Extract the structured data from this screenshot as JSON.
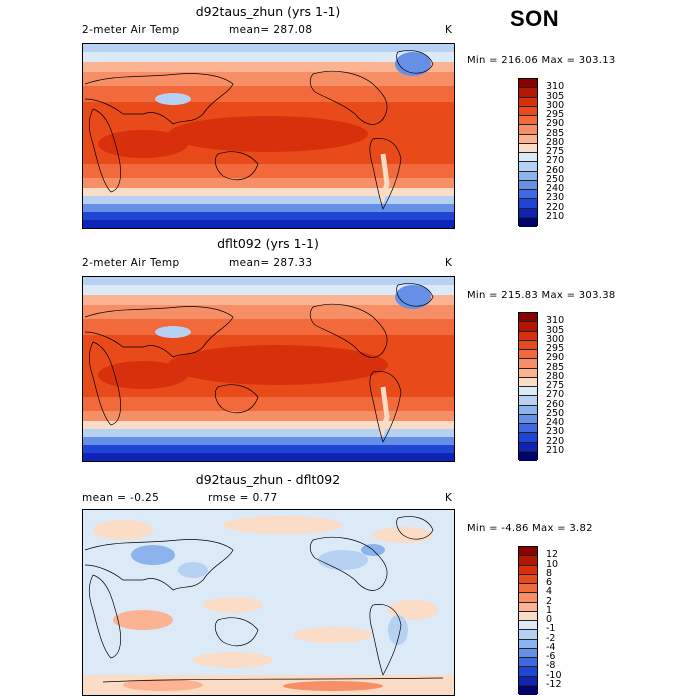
{
  "season": "SON",
  "panels": [
    {
      "title": "d92taus_zhun (yrs 1-1)",
      "varname": "2-meter Air Temp",
      "mean_label": "mean= 287.08",
      "units": "K",
      "minmax": "Min = 216.06 Max = 303.13",
      "colorbar_labels": [
        "310",
        "305",
        "300",
        "295",
        "290",
        "285",
        "280",
        "275",
        "270",
        "260",
        "250",
        "240",
        "230",
        "220",
        "210"
      ],
      "colorbar_colors": [
        "#8b0000",
        "#b31500",
        "#d8300c",
        "#e84a1a",
        "#f26a3c",
        "#f78f66",
        "#fbb392",
        "#fbdcc7",
        "#dce9f7",
        "#b7d1f2",
        "#8db3ec",
        "#6590e6",
        "#3f69e0",
        "#1f45d5",
        "#0e24b8",
        "#02026b"
      ]
    },
    {
      "title": "dflt092 (yrs 1-1)",
      "varname": "2-meter Air Temp",
      "mean_label": "mean= 287.33",
      "units": "K",
      "minmax": "Min = 215.83 Max = 303.38",
      "colorbar_labels": [
        "310",
        "305",
        "300",
        "295",
        "290",
        "285",
        "280",
        "275",
        "270",
        "260",
        "250",
        "240",
        "230",
        "220",
        "210"
      ],
      "colorbar_colors": [
        "#8b0000",
        "#b31500",
        "#d8300c",
        "#e84a1a",
        "#f26a3c",
        "#f78f66",
        "#fbb392",
        "#fbdcc7",
        "#dce9f7",
        "#b7d1f2",
        "#8db3ec",
        "#6590e6",
        "#3f69e0",
        "#1f45d5",
        "#0e24b8",
        "#02026b"
      ]
    },
    {
      "title": "d92taus_zhun - dflt092",
      "mean_label": "mean =   -0.25",
      "rmse_label": "rmse =    0.77",
      "units": "K",
      "minmax": "Min =   -4.86 Max =    3.82",
      "colorbar_labels": [
        "12",
        "10",
        "8",
        "6",
        "4",
        "2",
        "1",
        "0",
        "-1",
        "-2",
        "-4",
        "-6",
        "-8",
        "-10",
        "-12"
      ],
      "colorbar_colors": [
        "#8b0000",
        "#b31500",
        "#d8300c",
        "#e84a1a",
        "#f26a3c",
        "#f78f66",
        "#fbb392",
        "#fbdcc7",
        "#dce9f7",
        "#b7d1f2",
        "#8db3ec",
        "#6590e6",
        "#3f69e0",
        "#1f45d5",
        "#0e24b8",
        "#02026b"
      ]
    }
  ]
}
